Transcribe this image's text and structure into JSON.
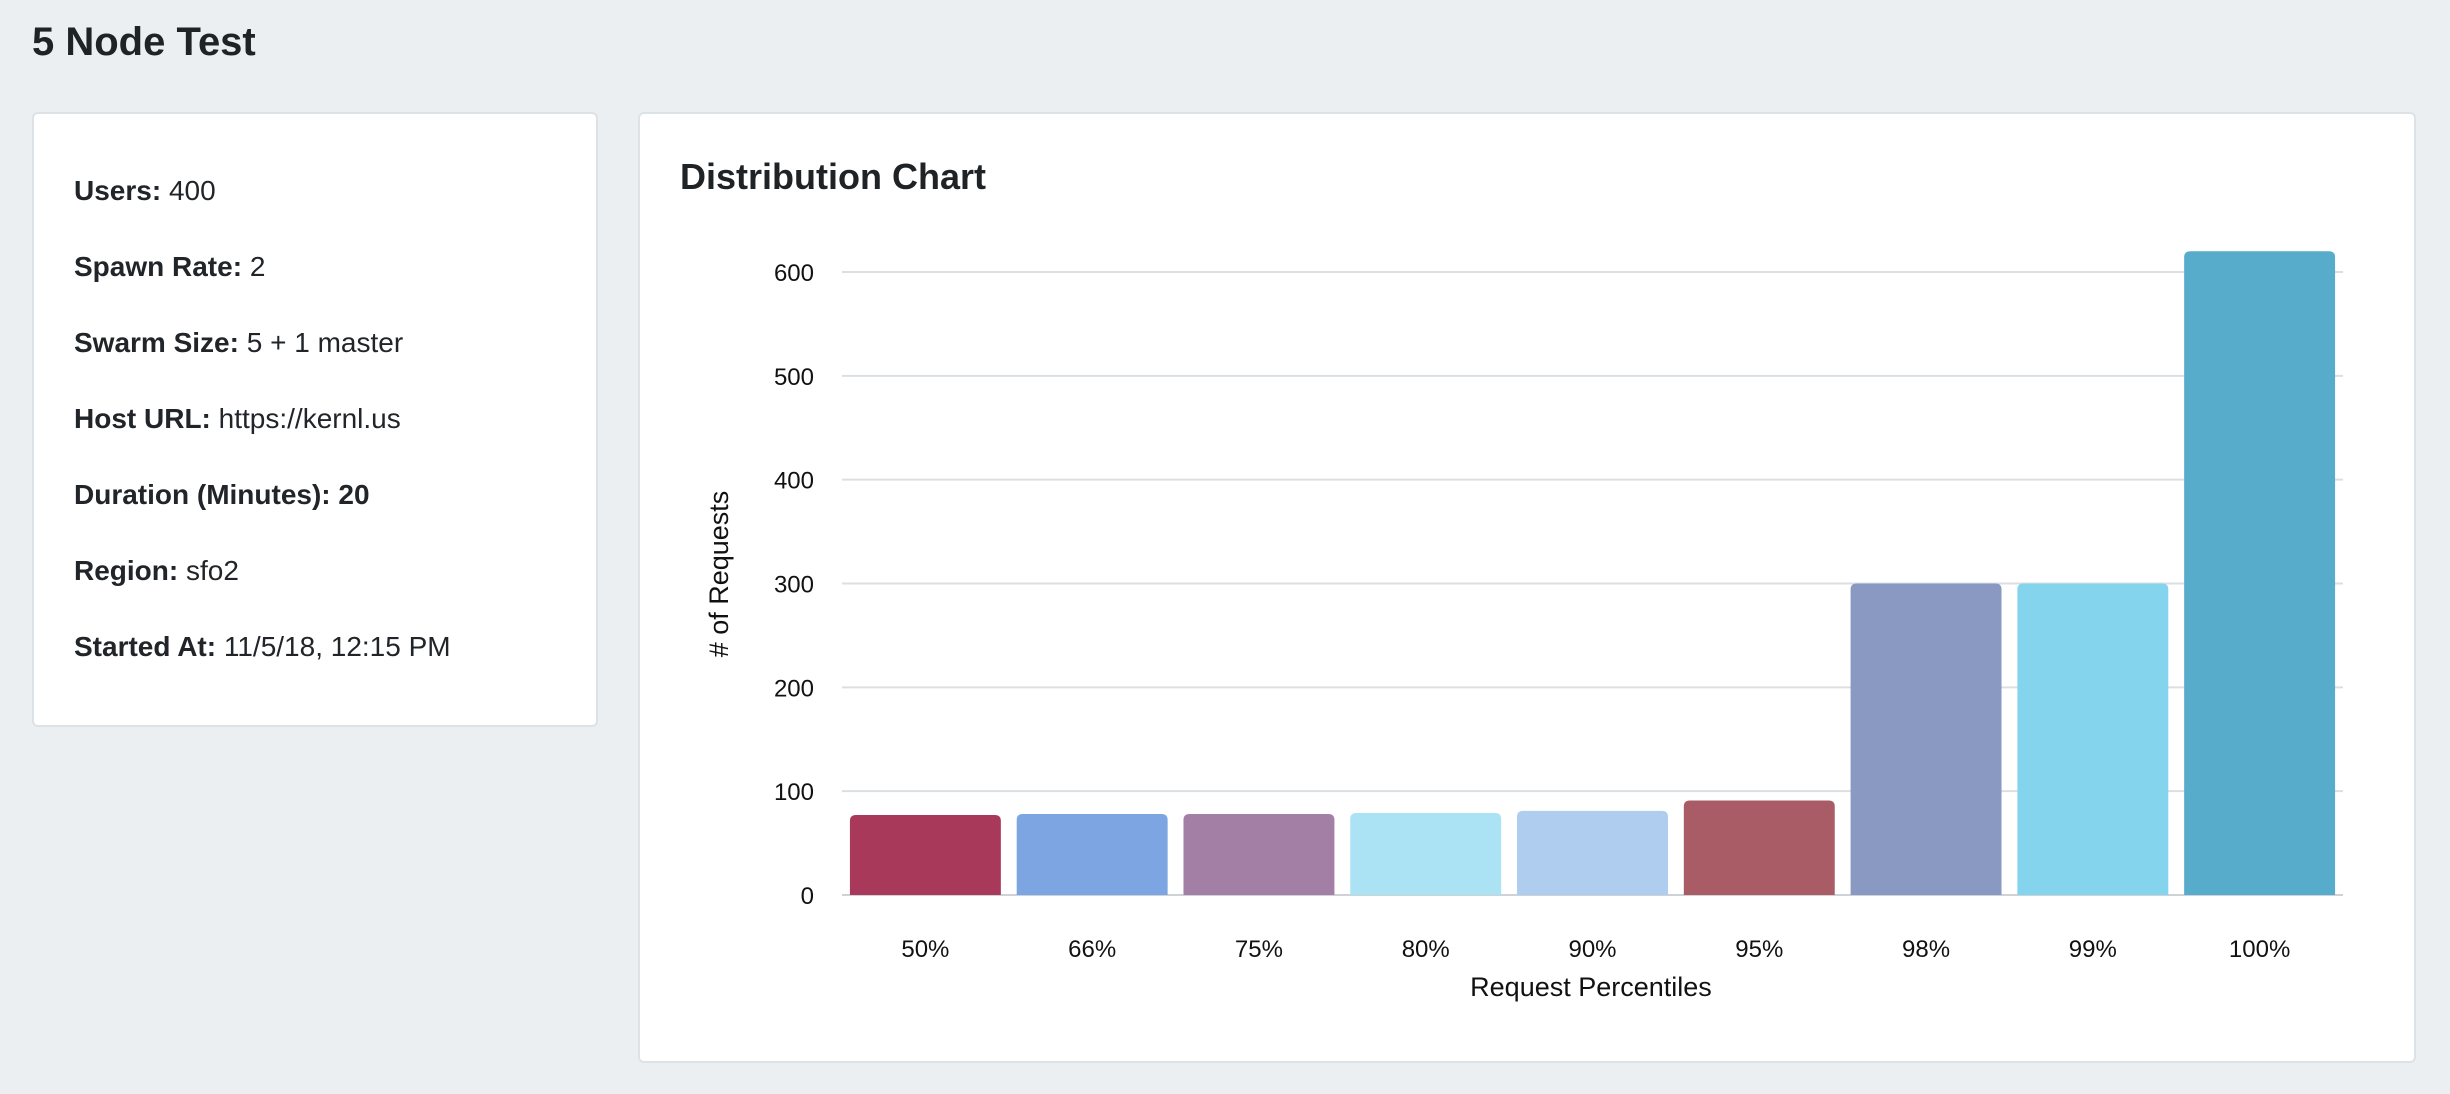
{
  "page": {
    "title": "5 Node Test"
  },
  "info": {
    "users": {
      "label": "Users:",
      "value": "400"
    },
    "spawn_rate": {
      "label": "Spawn Rate:",
      "value": "2"
    },
    "swarm_size": {
      "label": "Swarm Size:",
      "value": "5 + 1 master"
    },
    "host_url": {
      "label": "Host URL:",
      "value": "https://kernl.us"
    },
    "duration": {
      "label": "Duration (Minutes):",
      "value": "20"
    },
    "region": {
      "label": "Region:",
      "value": "sfo2"
    },
    "started_at": {
      "label": "Started At:",
      "value": "11/5/18, 12:15 PM"
    }
  },
  "chart_card": {
    "title": "Distribution Chart"
  },
  "chart_data": {
    "type": "bar",
    "title": "Distribution Chart",
    "xlabel": "Request Percentiles",
    "ylabel": "# of Requests",
    "categories": [
      "50%",
      "66%",
      "75%",
      "80%",
      "90%",
      "95%",
      "98%",
      "99%",
      "100%"
    ],
    "values": [
      77,
      78,
      78,
      79,
      81,
      91,
      300,
      300,
      620
    ],
    "y_ticks": [
      0,
      100,
      200,
      300,
      400,
      500,
      600
    ],
    "ylim": [
      0,
      600
    ],
    "grid": true,
    "legend": "none",
    "colors": [
      "#a8395b",
      "#7da5e1",
      "#a37fa6",
      "#ace3f4",
      "#afcdee",
      "#a95c66",
      "#8999c1",
      "#84d4ed",
      "#56acca"
    ]
  }
}
